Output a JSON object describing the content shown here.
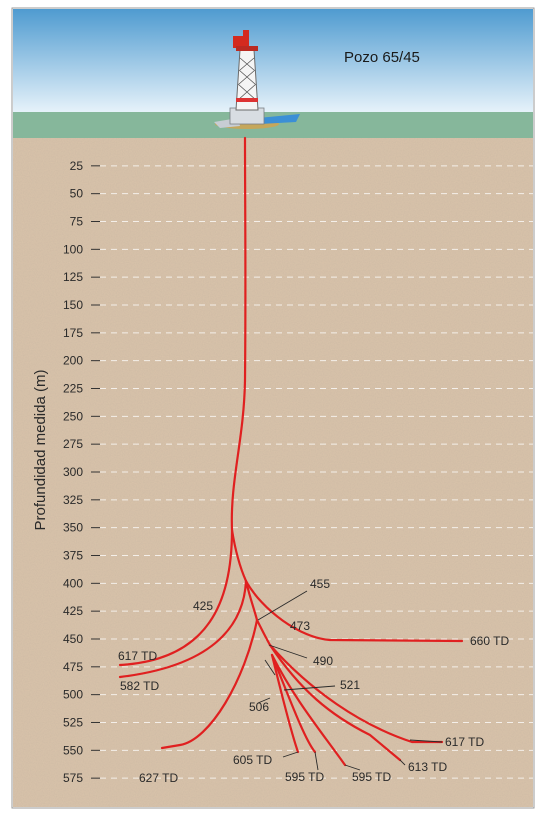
{
  "well_name": "Pozo 65/45",
  "axis_label": "Profundidad medida (m)",
  "depth_ticks": [
    "25",
    "50",
    "75",
    "100",
    "125",
    "150",
    "175",
    "200",
    "225",
    "250",
    "275",
    "300",
    "325",
    "350",
    "375",
    "400",
    "425",
    "450",
    "475",
    "500",
    "525",
    "550",
    "575"
  ],
  "junction_labels": [
    "425",
    "455",
    "473",
    "490",
    "506",
    "521"
  ],
  "td_labels": [
    "617 TD",
    "582 TD",
    "660 TD",
    "627 TD",
    "605 TD",
    "595 TD",
    "595 TD",
    "613 TD",
    "617 TD"
  ],
  "colors": {
    "sky_top": "#4f9bd0",
    "sky_bottom": "#e6f2fa",
    "ground_strip": "#86b79b",
    "soil": "#d9c3aa",
    "well_path": "#e02020",
    "gridline": "#ffffff",
    "text": "#2a2a2a"
  },
  "icons": [
    "drilling-rig-icon"
  ]
}
